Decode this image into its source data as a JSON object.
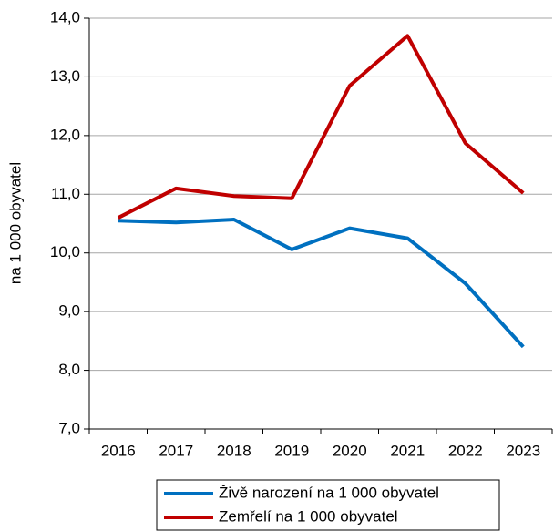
{
  "chart_data": {
    "type": "line",
    "y_label": "na 1 000 obyvatel",
    "categories": [
      "2016",
      "2017",
      "2018",
      "2019",
      "2020",
      "2021",
      "2022",
      "2023"
    ],
    "series": [
      {
        "name": "Živě narození na 1 000 obyvatel",
        "color": "#0070c0",
        "values": [
          10.55,
          10.52,
          10.57,
          10.06,
          10.42,
          10.25,
          9.48,
          8.4
        ]
      },
      {
        "name": "Zemřelí na 1 000 obyvatel",
        "color": "#c00000",
        "values": [
          10.6,
          11.1,
          10.97,
          10.93,
          12.85,
          13.7,
          11.87,
          11.02
        ]
      }
    ],
    "ylim": [
      7,
      14
    ],
    "yticks": [
      {
        "value": 7,
        "label": "7,0"
      },
      {
        "value": 8,
        "label": "8,0"
      },
      {
        "value": 9,
        "label": "9,0"
      },
      {
        "value": 10,
        "label": "10,0"
      },
      {
        "value": 11,
        "label": "11,0"
      },
      {
        "value": 12,
        "label": "12,0"
      },
      {
        "value": 13,
        "label": "13,0"
      },
      {
        "value": 14,
        "label": "14,0"
      }
    ],
    "grid": true,
    "legend": "bottom"
  }
}
